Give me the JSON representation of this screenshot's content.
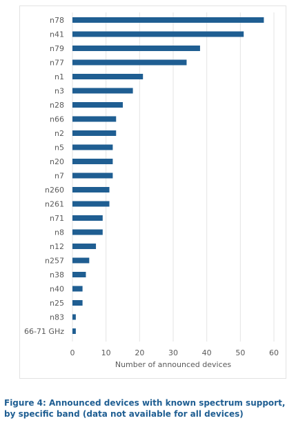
{
  "chart_data": {
    "type": "bar",
    "orientation": "horizontal",
    "categories": [
      "n78",
      "n41",
      "n79",
      "n77",
      "n1",
      "n3",
      "n28",
      "n66",
      "n2",
      "n5",
      "n20",
      "n7",
      "n260",
      "n261",
      "n71",
      "n8",
      "n12",
      "n257",
      "n38",
      "n40",
      "n25",
      "n83",
      "66-71 GHz"
    ],
    "values": [
      57,
      51,
      38,
      34,
      21,
      18,
      15,
      13,
      13,
      12,
      12,
      12,
      11,
      11,
      9,
      9,
      7,
      5,
      4,
      3,
      3,
      1,
      1
    ],
    "xlabel": "Number of announced devices",
    "xlim": [
      0,
      60
    ],
    "xticks": [
      0,
      10,
      20,
      30,
      40,
      50,
      60
    ],
    "grid": "vertical",
    "bar_color": "#1f5e92"
  },
  "caption": "Figure 4: Announced devices with known spectrum support, by specific band (data not available for all devices)"
}
